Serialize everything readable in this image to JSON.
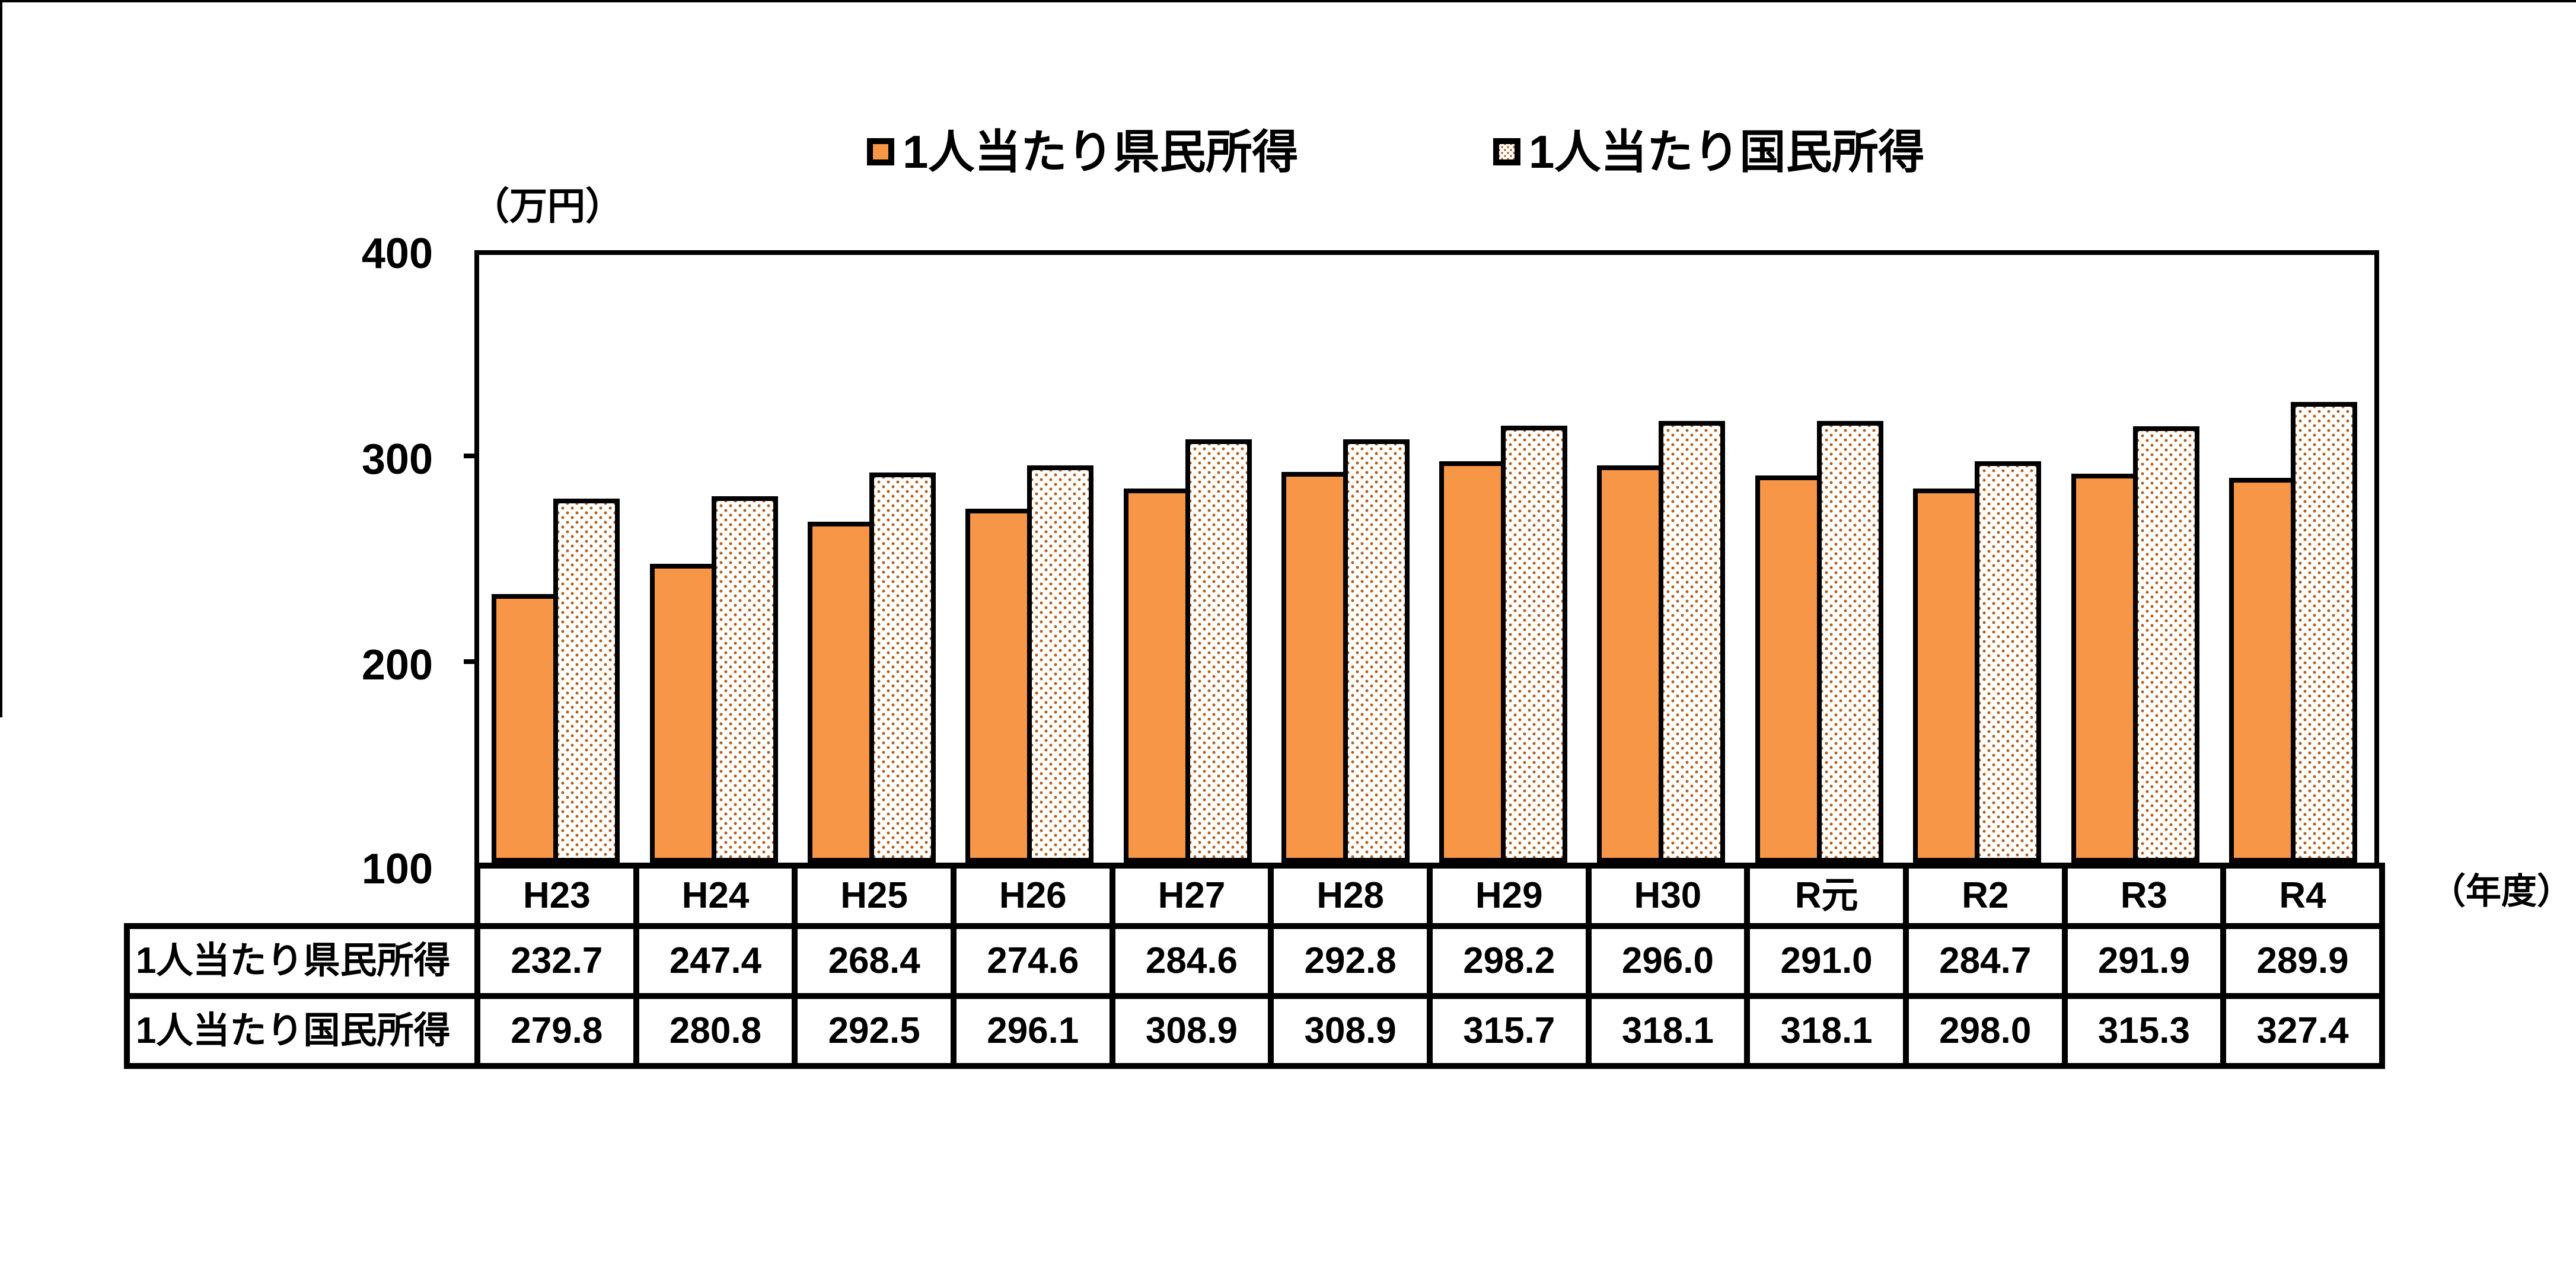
{
  "legend": {
    "items": [
      {
        "label": "1人当たり県民所得",
        "swatch": "orange-solid-swatch"
      },
      {
        "label": "1人当たり国民所得",
        "swatch": "white-dotted-swatch"
      }
    ]
  },
  "axis": {
    "y_unit_label": "（万円）",
    "x_unit_label": "（年度）",
    "y_ticks": [
      "400",
      "300",
      "200",
      "100"
    ]
  },
  "chart_data": {
    "type": "bar",
    "title": "",
    "categories": [
      "H23",
      "H24",
      "H25",
      "H26",
      "H27",
      "H28",
      "H29",
      "H30",
      "R元",
      "R2",
      "R3",
      "R4"
    ],
    "series": [
      {
        "name": "1人当たり県民所得",
        "pattern": "solid",
        "color": "#F79646",
        "values": [
          232.7,
          247.4,
          268.4,
          274.6,
          284.6,
          292.8,
          298.2,
          296.0,
          291.0,
          284.7,
          291.9,
          289.9
        ]
      },
      {
        "name": "1人当たり国民所得",
        "pattern": "dots",
        "color": "#FFFFFF",
        "values": [
          279.8,
          280.8,
          292.5,
          296.1,
          308.9,
          308.9,
          315.7,
          318.1,
          318.1,
          298.0,
          315.3,
          327.4
        ]
      }
    ],
    "ylabel": "（万円）",
    "xlabel": "（年度）",
    "ylim": [
      100,
      400
    ],
    "y_tick_interval": 100,
    "grid": false,
    "legend_position": "top"
  },
  "table": {
    "rows": [
      {
        "label": "1人当たり県民所得",
        "values": [
          "232.7",
          "247.4",
          "268.4",
          "274.6",
          "284.6",
          "292.8",
          "298.2",
          "296.0",
          "291.0",
          "284.7",
          "291.9",
          "289.9"
        ]
      },
      {
        "label": "1人当たり国民所得",
        "values": [
          "279.8",
          "280.8",
          "292.5",
          "296.1",
          "308.9",
          "308.9",
          "315.7",
          "318.1",
          "318.1",
          "298.0",
          "315.3",
          "327.4"
        ]
      }
    ]
  },
  "colors": {
    "bar_fill": "#F79646",
    "pattern_dot": "#B2601E",
    "line": "#000000",
    "background": "#FFFFFF"
  }
}
